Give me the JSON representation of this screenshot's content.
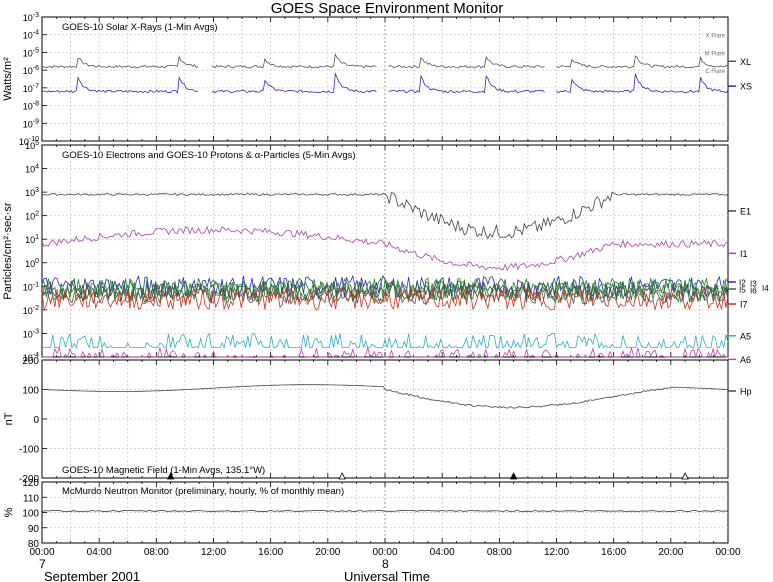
{
  "page": {
    "title": "GOES Space Environment Monitor",
    "date_label": "September 2001",
    "xlabel": "Universal Time"
  },
  "x_axis": {
    "ticks": [
      "00:00",
      "04:00",
      "08:00",
      "12:00",
      "16:00",
      "20:00",
      "00:00",
      "04:00",
      "08:00",
      "12:00",
      "16:00",
      "20:00",
      "00:00"
    ],
    "day_labels": [
      {
        "hour": 0,
        "text": "7"
      },
      {
        "hour": 24,
        "text": "8"
      }
    ],
    "range_hours": [
      0,
      48
    ]
  },
  "chart_data": [
    {
      "type": "line",
      "title": "GOES-10 Solar X-Rays (1-Min Avgs)",
      "ylabel": "Watts/m²",
      "yscale": "log",
      "ylim_exp": [
        -10,
        -3
      ],
      "tick_labels": [
        "10-3",
        "10-4",
        "10-5",
        "10-6",
        "10-7",
        "10-8",
        "10-9",
        "10-10"
      ],
      "thresholds": [
        {
          "name": "X Flare",
          "exp": -4
        },
        {
          "name": "M Flare",
          "exp": -5
        },
        {
          "name": "C Flare",
          "exp": -6
        }
      ],
      "series": [
        {
          "name": "XL",
          "color": "#555555",
          "base_exp": -5.8
        },
        {
          "name": "XS",
          "color": "#2a2ab8",
          "base_exp": -7.2
        }
      ]
    },
    {
      "type": "line",
      "title": "GOES-10 Electrons and GOES-10 Protons & α-Particles (5-Min Avgs)",
      "ylabel": "Particles/cm²·sec·sr",
      "yscale": "log",
      "ylim_exp": [
        -4,
        5
      ],
      "tick_labels": [
        "105",
        "104",
        "103",
        "102",
        "101",
        "100",
        "10-1",
        "10-2",
        "10-3",
        "10-4"
      ],
      "series": [
        {
          "name": "E1",
          "color": "#444444",
          "base_exp": 2.9
        },
        {
          "name": "I1",
          "color": "#b040b0",
          "base_exp": 0.8
        },
        {
          "name": "I2",
          "color": "#2a2ab8",
          "base_exp": -1.0
        },
        {
          "name": "I3",
          "color": "#1a8a1a",
          "base_exp": -1.1
        },
        {
          "name": "I4",
          "color": "#207030",
          "base_exp": -1.2
        },
        {
          "name": "I5",
          "color": "#3a6a3a",
          "base_exp": -1.25
        },
        {
          "name": "I6",
          "color": "#555555",
          "base_exp": -1.3
        },
        {
          "name": "I7",
          "color": "#d03020",
          "base_exp": -1.55
        },
        {
          "name": "A5",
          "color": "#30b0c0",
          "base_exp": -3.6
        },
        {
          "name": "A6",
          "color": "#c040c0",
          "base_exp": -4.2
        }
      ],
      "labels_multi": {
        "I2": "I2",
        "I3": "I3",
        "I4": "I4",
        "I5": "I5",
        "I6": "I6"
      }
    },
    {
      "type": "line",
      "title": "GOES-10 Magnetic Field (1-Min Avgs, 135.1°W)",
      "ylabel": "nT",
      "ylim": [
        -200,
        200
      ],
      "ticks": [
        200,
        100,
        0,
        -100,
        -200
      ],
      "series": [
        {
          "name": "Hp",
          "color": "#444444"
        }
      ],
      "markers": [
        {
          "hour": 9,
          "filled": true
        },
        {
          "hour": 21,
          "filled": false
        },
        {
          "hour": 33,
          "filled": true
        },
        {
          "hour": 45,
          "filled": false
        }
      ]
    },
    {
      "type": "line",
      "title": "McMurdo Neutron Monitor (preliminary, hourly, % of monthly mean)",
      "ylabel": "%",
      "ylim": [
        80,
        120
      ],
      "ticks": [
        120,
        110,
        100,
        90,
        80
      ],
      "series": [
        {
          "name": "neutron",
          "color": "#333333",
          "value": 101
        }
      ]
    }
  ]
}
